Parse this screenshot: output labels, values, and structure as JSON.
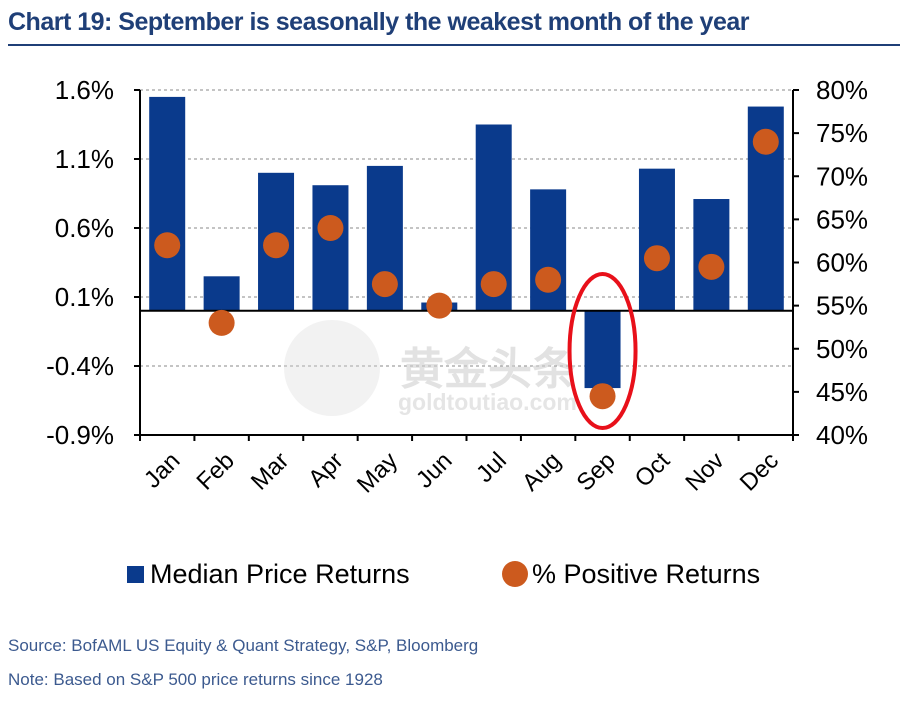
{
  "title": "Chart 19: September is seasonally the weakest month of the year",
  "footer": {
    "source": "Source: BofAML US Equity & Quant Strategy, S&P, Bloomberg",
    "note": "Note: Based on S&P 500 price returns since 1928"
  },
  "watermark": {
    "chinese": "黄金头条",
    "latin": "goldtoutiao.com"
  },
  "chart_data": {
    "type": "bar",
    "categories": [
      "Jan",
      "Feb",
      "Mar",
      "Apr",
      "May",
      "Jun",
      "Jul",
      "Aug",
      "Sep",
      "Oct",
      "Nov",
      "Dec"
    ],
    "series": [
      {
        "name": "Median Price Returns",
        "type": "bar",
        "axis": "left",
        "color": "#0a3a8c",
        "values": [
          1.55,
          0.25,
          1.0,
          0.91,
          1.05,
          0.06,
          1.35,
          0.88,
          -0.56,
          1.03,
          0.81,
          1.48
        ]
      },
      {
        "name": "% Positive Returns",
        "type": "scatter",
        "axis": "right",
        "color": "#cc5a1e",
        "values": [
          62,
          53,
          62,
          64,
          57.5,
          55,
          57.5,
          58,
          44.5,
          60.5,
          59.5,
          74
        ]
      }
    ],
    "left_axis": {
      "ticks": [
        "1.6%",
        "1.1%",
        "0.6%",
        "0.1%",
        "-0.4%",
        "-0.9%"
      ],
      "tick_values": [
        1.6,
        1.1,
        0.6,
        0.1,
        -0.4,
        -0.9
      ],
      "ylim": [
        -0.9,
        1.6
      ]
    },
    "right_axis": {
      "ticks": [
        "80%",
        "75%",
        "70%",
        "65%",
        "60%",
        "55%",
        "50%",
        "45%",
        "40%"
      ],
      "tick_values": [
        80,
        75,
        70,
        65,
        60,
        55,
        50,
        45,
        40
      ],
      "ylim": [
        40,
        80
      ]
    },
    "highlight": {
      "category": "Sep",
      "color": "#e8101a"
    },
    "grid": true,
    "legend_position": "bottom"
  }
}
